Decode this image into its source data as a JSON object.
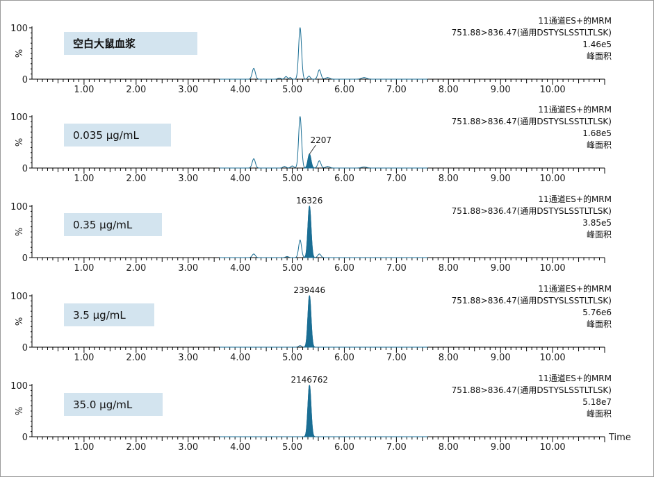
{
  "chart_data": {
    "type": "line",
    "x_axis": {
      "xlim": [
        0,
        11.0
      ],
      "tick_labels": [
        "1.00",
        "2.00",
        "3.00",
        "4.00",
        "5.00",
        "6.00",
        "7.00",
        "8.00",
        "9.00",
        "10.00"
      ],
      "tick_values": [
        1,
        2,
        3,
        4,
        5,
        6,
        7,
        8,
        9,
        10
      ],
      "xlabel": "Time"
    },
    "y_axis": {
      "ylim": [
        0,
        100
      ],
      "tick_labels": [
        "100",
        "0"
      ],
      "ylabel": "%"
    },
    "color": "#1a6e94",
    "sample_box_color": "#d3e4ef",
    "panels": [
      {
        "sample": "空白大鼠血浆",
        "channel": "11通道ES+的MRM",
        "transition": "751.88>836.47(通用DSTYSLSSTLTLSK)",
        "max_intensity": "1.46e5",
        "area_label": "峰面积",
        "peak_label": "",
        "peaks": [
          {
            "rt": 4.26,
            "height": 21,
            "width": 0.03
          },
          {
            "rt": 4.75,
            "height": 2,
            "width": 0.03
          },
          {
            "rt": 4.88,
            "height": 5,
            "width": 0.025
          },
          {
            "rt": 4.96,
            "height": 3,
            "width": 0.02
          },
          {
            "rt": 5.15,
            "height": 100,
            "width": 0.028
          },
          {
            "rt": 5.32,
            "height": 6,
            "width": 0.025
          },
          {
            "rt": 5.52,
            "height": 18,
            "width": 0.03
          },
          {
            "rt": 5.68,
            "height": 3,
            "width": 0.04
          },
          {
            "rt": 6.38,
            "height": 3,
            "width": 0.05
          }
        ],
        "filled_peak": null
      },
      {
        "sample": "0.035 µg/mL",
        "channel": "11通道ES+的MRM",
        "transition": "751.88>836.47(通用DSTYSLSSTLTLSK)",
        "max_intensity": "1.68e5",
        "area_label": "峰面积",
        "peak_label": "2207",
        "peaks": [
          {
            "rt": 4.26,
            "height": 18,
            "width": 0.03
          },
          {
            "rt": 4.85,
            "height": 3,
            "width": 0.03
          },
          {
            "rt": 5.0,
            "height": 4,
            "width": 0.03
          },
          {
            "rt": 5.15,
            "height": 100,
            "width": 0.028
          },
          {
            "rt": 5.52,
            "height": 14,
            "width": 0.03
          },
          {
            "rt": 5.68,
            "height": 3,
            "width": 0.04
          },
          {
            "rt": 6.38,
            "height": 2,
            "width": 0.05
          }
        ],
        "filled_peak": {
          "rt": 5.33,
          "height": 27,
          "width": 0.03
        }
      },
      {
        "sample": "0.35 µg/mL",
        "channel": "11通道ES+的MRM",
        "transition": "751.88>836.47(通用DSTYSLSSTLTLSK)",
        "max_intensity": "3.85e5",
        "area_label": "峰面积",
        "peak_label": "16326",
        "peaks": [
          {
            "rt": 4.26,
            "height": 7,
            "width": 0.03
          },
          {
            "rt": 4.9,
            "height": 2,
            "width": 0.03
          },
          {
            "rt": 5.15,
            "height": 34,
            "width": 0.028
          },
          {
            "rt": 5.52,
            "height": 7,
            "width": 0.03
          }
        ],
        "filled_peak": {
          "rt": 5.33,
          "height": 100,
          "width": 0.03
        }
      },
      {
        "sample": "3.5 µg/mL",
        "channel": "11通道ES+的MRM",
        "transition": "751.88>836.47(通用DSTYSLSSTLTLSK)",
        "max_intensity": "5.76e6",
        "area_label": "峰面积",
        "peak_label": "239446",
        "peaks": [
          {
            "rt": 5.15,
            "height": 3,
            "width": 0.028
          }
        ],
        "filled_peak": {
          "rt": 5.33,
          "height": 100,
          "width": 0.03
        }
      },
      {
        "sample": "35.0 µg/mL",
        "channel": "11通道ES+的MRM",
        "transition": "751.88>836.47(通用DSTYSLSSTLTLSK)",
        "max_intensity": "5.18e7",
        "area_label": "峰面积",
        "peak_label": "2146762",
        "peaks": [],
        "filled_peak": {
          "rt": 5.33,
          "height": 100,
          "width": 0.03
        }
      }
    ]
  }
}
